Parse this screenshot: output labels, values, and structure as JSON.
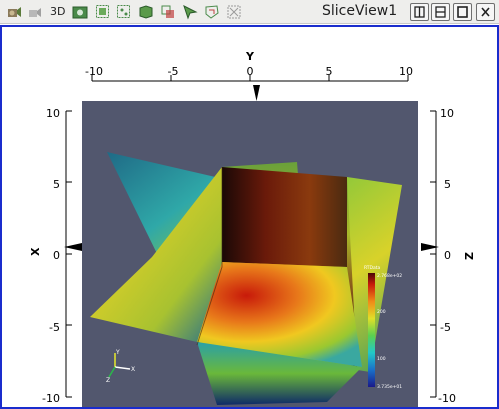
{
  "window": {
    "title": "SliceView1"
  },
  "toolbar": {
    "three_d_label": "3D",
    "icons": [
      "camera-reset-icon",
      "camera-undo-icon",
      "3d-mode-icon",
      "screenshot-icon",
      "select-cells-icon",
      "select-points-icon",
      "select-frustum-icon",
      "select-block-icon",
      "interactive-select-icon",
      "select-polygon-icon",
      "clear-selection-icon"
    ]
  },
  "window_buttons": [
    "split-horizontal-icon",
    "split-vertical-icon",
    "maximize-icon",
    "close-icon"
  ],
  "axes": {
    "y_label": "Y",
    "x_label": "X",
    "z_label": "Z",
    "y_ticks": [
      "-10",
      "-5",
      "0",
      "5",
      "10"
    ],
    "x_ticks": [
      "10",
      "5",
      "0",
      "-5",
      "-10"
    ],
    "z_ticks": [
      "10",
      "5",
      "0",
      "-5",
      "-10"
    ]
  },
  "legend": {
    "title": "RTData",
    "max": "2.768e+02",
    "mid_high": "200",
    "mid_low": "100",
    "min": "3.735e+01"
  },
  "orientation": {
    "x": "X",
    "y": "Y",
    "z": "Z"
  },
  "colors": {
    "background": "#52576e",
    "border": "#1a2ccd",
    "toolbar": "#eeeeec"
  }
}
